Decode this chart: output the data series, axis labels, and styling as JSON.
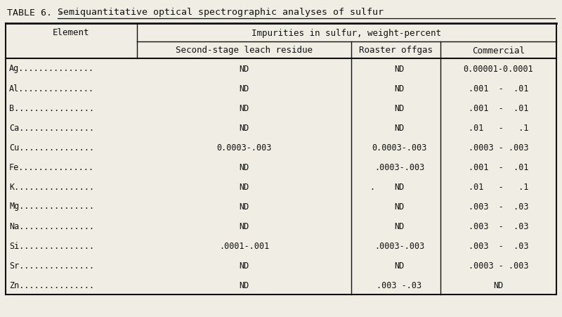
{
  "title_plain": "TABLE 6. - ",
  "title_underlined": "Semiquantitative optical spectrographic analyses of sulfur",
  "header1_left": "Element",
  "header2_center": "Impurities in sulfur, weight-percent",
  "subheaders": [
    "Second-stage leach residue",
    "Roaster offgas",
    "Commercial"
  ],
  "elements": [
    "Ag...............",
    "Al...............",
    "B................",
    "Ca...............",
    "Cu...............",
    "Fe...............",
    "K................",
    "Mg...............",
    "Na...............",
    "Si...............",
    "Sr...............",
    "Zn..............."
  ],
  "col1": [
    "ND",
    "ND",
    "ND",
    "ND",
    "0.0003-.003",
    "ND",
    "ND",
    "ND",
    "ND",
    ".0001-.001",
    "ND",
    "ND"
  ],
  "col2": [
    "ND",
    "ND",
    "ND",
    "ND",
    "0.0003-.003",
    ".0003-.003",
    "ND",
    "ND",
    "ND",
    ".0003-.003",
    "ND",
    ".003 -.03"
  ],
  "col2_kdot": true,
  "col3": [
    "0.00001-0.0001",
    ".001  -  .01",
    ".001  -  .01",
    ".01   -   .1",
    ".0003 - .003",
    ".001  -  .01",
    ".01   -   .1",
    ".003  -  .03",
    ".003  -  .03",
    ".003  -  .03",
    ".0003 - .003",
    "ND"
  ],
  "bg_color": "#f0ede4",
  "line_color": "#111111",
  "text_color": "#111111",
  "font_family": "monospace",
  "title_fontsize": 9.5,
  "header_fontsize": 9.0,
  "cell_fontsize": 8.5,
  "fig_width": 8.0,
  "fig_height": 4.52,
  "dpi": 100
}
